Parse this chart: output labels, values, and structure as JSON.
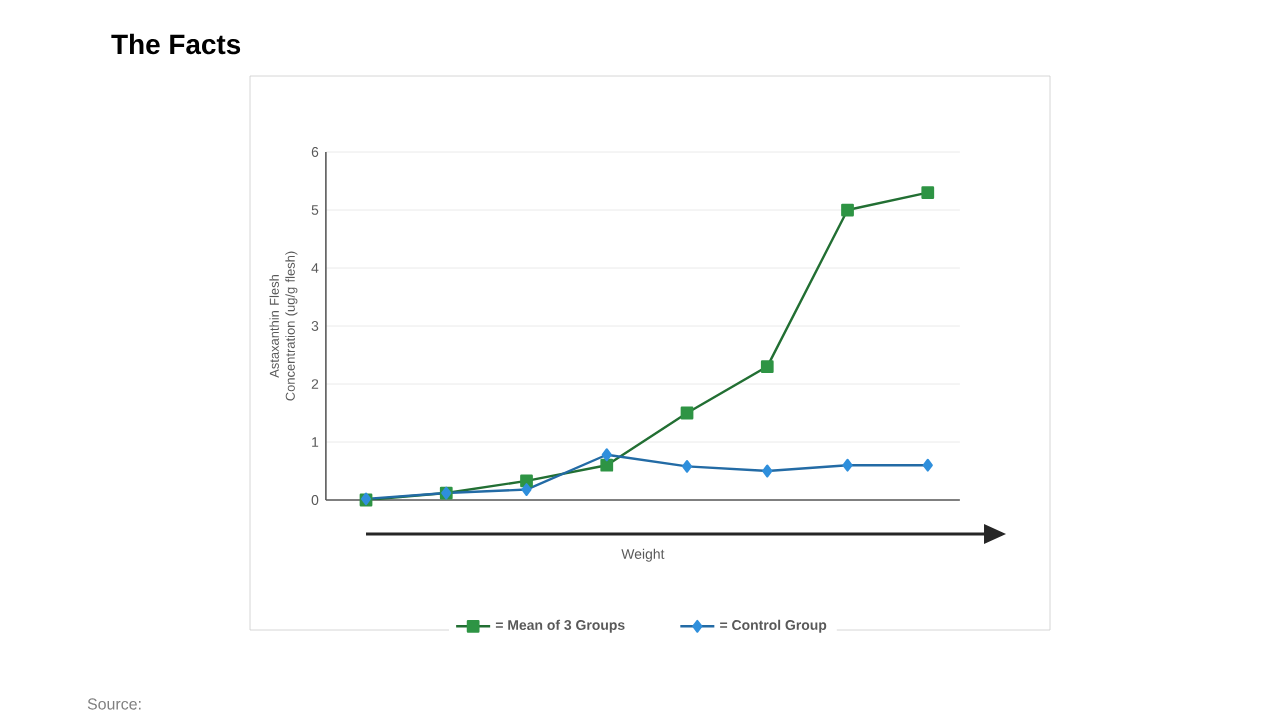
{
  "chart_data": {
    "type": "line",
    "title": "The Facts",
    "ylabel": "Astaxanthin Flesh Concentration (ug/g flesh)",
    "xlabel": "Weight",
    "categories": [
      null,
      null,
      null,
      null,
      null,
      null,
      null,
      null
    ],
    "series": [
      {
        "name": "= Mean of 3 Groups",
        "color": "#2e9444",
        "marker": "square",
        "values": [
          0,
          0.12,
          0.33,
          0.6,
          1.5,
          2.3,
          5.0,
          5.3
        ]
      },
      {
        "name": "= Control Group",
        "color": "#2f8fdc",
        "marker": "diamond",
        "values": [
          0.02,
          0.12,
          0.18,
          0.78,
          0.58,
          0.5,
          0.6,
          0.6
        ]
      }
    ],
    "ylim": [
      0,
      6
    ],
    "yticks": [
      0,
      1,
      2,
      3,
      4,
      5,
      6
    ],
    "grid": "y",
    "legend": "bottom",
    "line_style": "solid",
    "annotations": [
      "Source:"
    ]
  }
}
